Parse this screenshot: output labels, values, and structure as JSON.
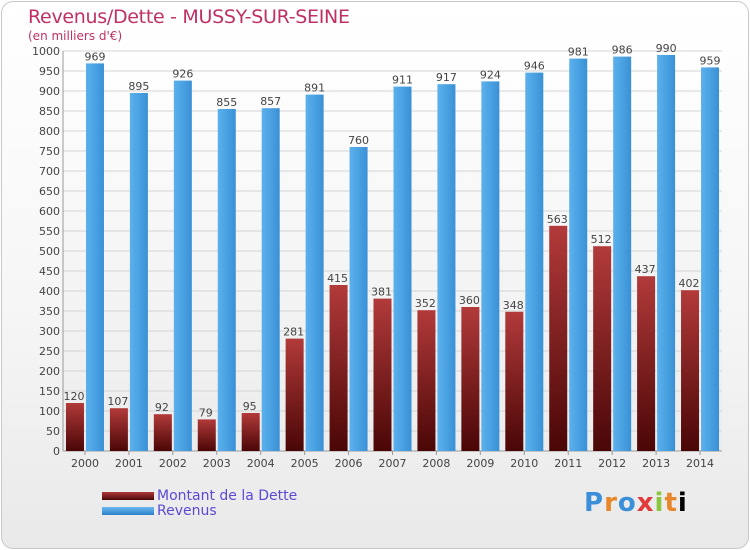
{
  "header": {
    "title": "Revenus/Dette - MUSSY-SUR-SEINE",
    "subtitle": "(en milliers d'€)"
  },
  "legend": {
    "items": [
      {
        "label": "Montant de la Dette",
        "color": "#7a1a1a"
      },
      {
        "label": "Revenus",
        "color": "#4a9fe0"
      }
    ]
  },
  "logo": {
    "letters": [
      "P",
      "r",
      "o",
      "x",
      "i",
      "t",
      "i"
    ]
  },
  "chart_data": {
    "type": "bar",
    "title": "Revenus/Dette - MUSSY-SUR-SEINE",
    "subtitle": "(en milliers d'€)",
    "categories": [
      "2000",
      "2001",
      "2002",
      "2003",
      "2004",
      "2005",
      "2006",
      "2007",
      "2008",
      "2009",
      "2010",
      "2011",
      "2012",
      "2013",
      "2014"
    ],
    "series": [
      {
        "name": "Montant de la Dette",
        "color": "#7a1a1a",
        "values": [
          120,
          107,
          92,
          79,
          95,
          281,
          415,
          381,
          352,
          360,
          348,
          563,
          512,
          437,
          402
        ]
      },
      {
        "name": "Revenus",
        "color": "#4a9fe0",
        "values": [
          969,
          895,
          926,
          855,
          857,
          891,
          760,
          911,
          917,
          924,
          946,
          981,
          986,
          990,
          959
        ]
      }
    ],
    "ylim": [
      0,
      1000
    ],
    "ytick_step": 50,
    "grid": true,
    "legend_position": "bottom-left"
  }
}
